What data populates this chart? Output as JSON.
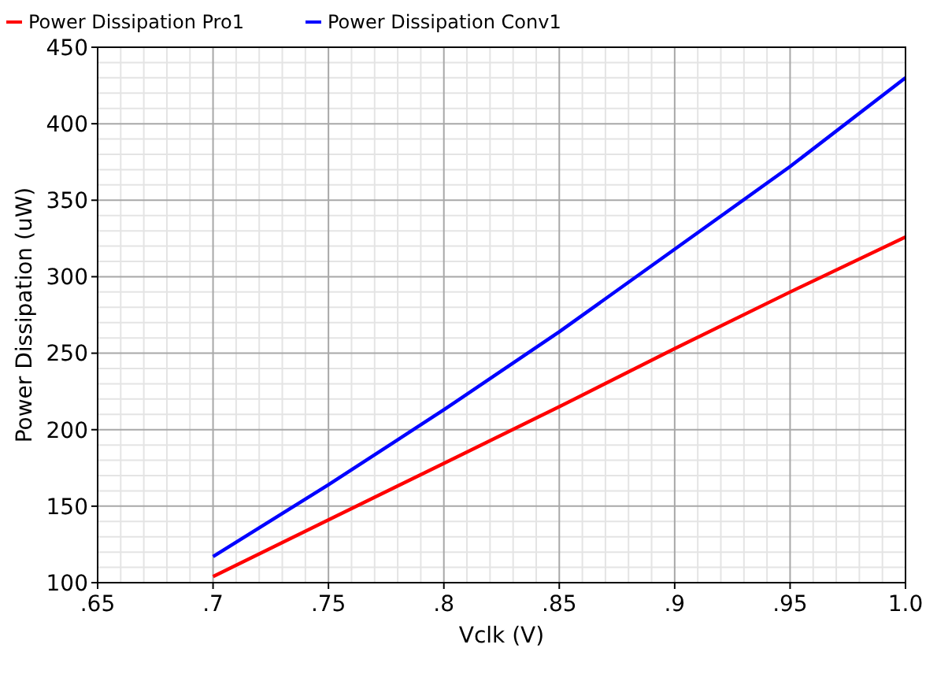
{
  "chart_data": {
    "type": "line",
    "xlabel": "Vclk (V)",
    "ylabel": "Power Dissipation (uW)",
    "xlim": [
      0.65,
      1.0
    ],
    "ylim": [
      100,
      450
    ],
    "xticks": [
      {
        "value": 0.65,
        "label": ".65"
      },
      {
        "value": 0.7,
        "label": ".7"
      },
      {
        "value": 0.75,
        "label": ".75"
      },
      {
        "value": 0.8,
        "label": ".8"
      },
      {
        "value": 0.85,
        "label": ".85"
      },
      {
        "value": 0.9,
        "label": ".9"
      },
      {
        "value": 0.95,
        "label": ".95"
      },
      {
        "value": 1.0,
        "label": "1.0"
      }
    ],
    "yticks": [
      100,
      150,
      200,
      250,
      300,
      350,
      400,
      450
    ],
    "grid": true,
    "legend": "top left",
    "marker": "none",
    "line_style": "solid",
    "x": [
      0.7,
      0.75,
      0.8,
      0.85,
      0.9,
      0.95,
      1.0
    ],
    "series": [
      {
        "name": "Power Dissipation Pro1",
        "color": "#ff0000",
        "values": [
          104,
          141,
          178,
          215,
          253,
          290,
          326
        ]
      },
      {
        "name": "Power Dissipation Conv1",
        "color": "#0000ff",
        "values": [
          117,
          164,
          213,
          264,
          318,
          372,
          430
        ]
      }
    ]
  }
}
